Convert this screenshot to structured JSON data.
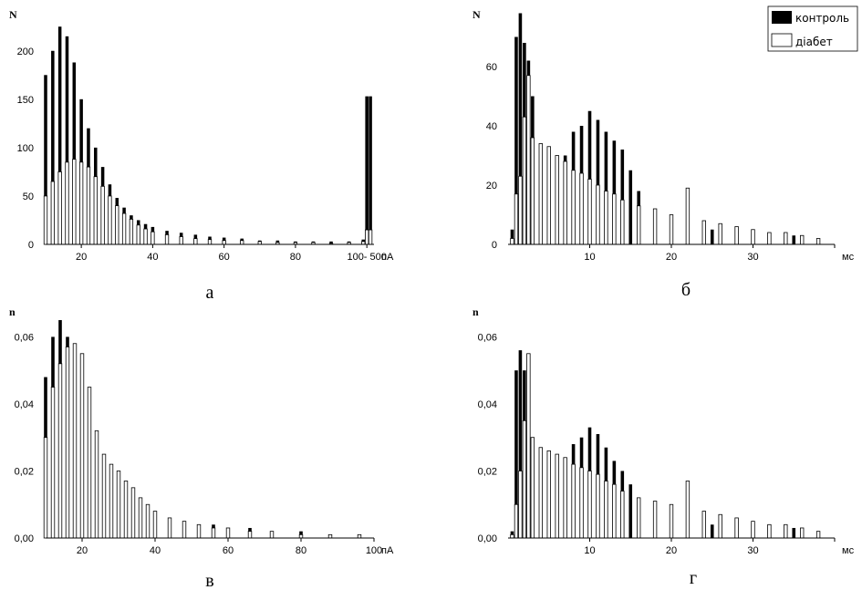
{
  "figure": {
    "legend": [
      {
        "label": "контроль",
        "color": "#000000",
        "fill": "solid"
      },
      {
        "label": "діабет",
        "color": "#000000",
        "fill": "hollow"
      }
    ]
  },
  "chart_data": [
    {
      "panel": "а",
      "type": "bar",
      "ylabel": "N",
      "xunit": "пА",
      "xlim": [
        10,
        102
      ],
      "ylim": [
        0,
        245
      ],
      "xticks": [
        {
          "v": 20,
          "label": "20"
        },
        {
          "v": 40,
          "label": "40"
        },
        {
          "v": 60,
          "label": "60"
        },
        {
          "v": 80,
          "label": "80"
        },
        {
          "v": 100,
          "label": "100- 500"
        }
      ],
      "yticks": [
        {
          "v": 0,
          "label": "0"
        },
        {
          "v": 50,
          "label": "50"
        },
        {
          "v": 100,
          "label": "100"
        },
        {
          "v": 150,
          "label": "150"
        },
        {
          "v": 200,
          "label": "200"
        }
      ],
      "bin_width": 0.9,
      "series": [
        {
          "name": "контроль",
          "style": "solid",
          "points": [
            [
              10,
              175
            ],
            [
              12,
              200
            ],
            [
              14,
              225
            ],
            [
              16,
              215
            ],
            [
              18,
              188
            ],
            [
              20,
              150
            ],
            [
              22,
              120
            ],
            [
              24,
              100
            ],
            [
              26,
              80
            ],
            [
              28,
              62
            ],
            [
              30,
              48
            ],
            [
              32,
              38
            ],
            [
              34,
              30
            ],
            [
              36,
              25
            ],
            [
              38,
              21
            ],
            [
              40,
              18
            ],
            [
              44,
              14
            ],
            [
              48,
              12
            ],
            [
              52,
              10
            ],
            [
              56,
              8
            ],
            [
              60,
              7
            ],
            [
              65,
              6
            ],
            [
              70,
              4
            ],
            [
              75,
              4
            ],
            [
              80,
              3
            ],
            [
              85,
              3
            ],
            [
              90,
              3
            ],
            [
              95,
              3
            ],
            [
              99,
              5
            ],
            [
              100,
              153
            ],
            [
              101,
              153
            ]
          ]
        },
        {
          "name": "діабет",
          "style": "hollow",
          "points": [
            [
              10,
              50
            ],
            [
              12,
              65
            ],
            [
              14,
              75
            ],
            [
              16,
              85
            ],
            [
              18,
              88
            ],
            [
              20,
              85
            ],
            [
              22,
              80
            ],
            [
              24,
              70
            ],
            [
              26,
              60
            ],
            [
              28,
              50
            ],
            [
              30,
              40
            ],
            [
              32,
              32
            ],
            [
              34,
              26
            ],
            [
              36,
              20
            ],
            [
              38,
              16
            ],
            [
              40,
              13
            ],
            [
              44,
              10
            ],
            [
              48,
              8
            ],
            [
              52,
              6
            ],
            [
              56,
              5
            ],
            [
              60,
              4
            ],
            [
              65,
              4
            ],
            [
              70,
              3
            ],
            [
              75,
              2
            ],
            [
              80,
              2
            ],
            [
              85,
              2
            ],
            [
              90,
              1
            ],
            [
              95,
              2
            ],
            [
              99,
              3
            ],
            [
              100,
              15
            ],
            [
              101,
              15
            ]
          ]
        }
      ]
    },
    {
      "panel": "б",
      "type": "bar",
      "ylabel": "N",
      "xunit": "мс",
      "xlim": [
        0,
        40
      ],
      "ylim": [
        0,
        80
      ],
      "xticks": [
        {
          "v": 10,
          "label": "10"
        },
        {
          "v": 20,
          "label": "20"
        },
        {
          "v": 30,
          "label": "30"
        },
        {
          "v": 40,
          "label": ""
        }
      ],
      "yticks": [
        {
          "v": 0,
          "label": "0"
        },
        {
          "v": 20,
          "label": "20"
        },
        {
          "v": 40,
          "label": "40"
        },
        {
          "v": 60,
          "label": "60"
        }
      ],
      "bin_width": 0.4,
      "series": [
        {
          "name": "контроль",
          "style": "solid",
          "points": [
            [
              0.5,
              5
            ],
            [
              1,
              70
            ],
            [
              1.5,
              78
            ],
            [
              2,
              68
            ],
            [
              2.5,
              62
            ],
            [
              3,
              50
            ],
            [
              4,
              30
            ],
            [
              6,
              25
            ],
            [
              7,
              30
            ],
            [
              8,
              38
            ],
            [
              9,
              40
            ],
            [
              10,
              45
            ],
            [
              11,
              42
            ],
            [
              12,
              38
            ],
            [
              13,
              35
            ],
            [
              14,
              32
            ],
            [
              15,
              25
            ],
            [
              16,
              18
            ],
            [
              18,
              10
            ],
            [
              20,
              6
            ],
            [
              25,
              5
            ],
            [
              30,
              3
            ],
            [
              35,
              3
            ],
            [
              38,
              1
            ]
          ]
        },
        {
          "name": "діабет",
          "style": "hollow",
          "points": [
            [
              0.5,
              2
            ],
            [
              1,
              17
            ],
            [
              1.5,
              23
            ],
            [
              2,
              43
            ],
            [
              2.5,
              57
            ],
            [
              3,
              36
            ],
            [
              4,
              34
            ],
            [
              5,
              33
            ],
            [
              6,
              30
            ],
            [
              7,
              28
            ],
            [
              8,
              25
            ],
            [
              9,
              24
            ],
            [
              10,
              22
            ],
            [
              11,
              20
            ],
            [
              12,
              18
            ],
            [
              13,
              17
            ],
            [
              14,
              15
            ],
            [
              16,
              13
            ],
            [
              18,
              12
            ],
            [
              20,
              10
            ],
            [
              22,
              19
            ],
            [
              24,
              8
            ],
            [
              26,
              7
            ],
            [
              28,
              6
            ],
            [
              30,
              5
            ],
            [
              32,
              4
            ],
            [
              34,
              4
            ],
            [
              36,
              3
            ],
            [
              38,
              2
            ]
          ]
        }
      ]
    },
    {
      "panel": "в",
      "type": "bar",
      "ylabel": "n",
      "xunit": "пА",
      "xlim": [
        10,
        100
      ],
      "ylim": [
        0,
        0.068
      ],
      "xticks": [
        {
          "v": 20,
          "label": "20"
        },
        {
          "v": 40,
          "label": "40"
        },
        {
          "v": 60,
          "label": "60"
        },
        {
          "v": 80,
          "label": "80"
        },
        {
          "v": 100,
          "label": "100"
        }
      ],
      "yticks": [
        {
          "v": 0,
          "label": "0,00"
        },
        {
          "v": 0.02,
          "label": "0,02"
        },
        {
          "v": 0.04,
          "label": "0,04"
        },
        {
          "v": 0.06,
          "label": "0,06"
        }
      ],
      "bin_width": 0.9,
      "series": [
        {
          "name": "контроль",
          "style": "solid",
          "points": [
            [
              10,
              0.048
            ],
            [
              12,
              0.06
            ],
            [
              14,
              0.065
            ],
            [
              16,
              0.06
            ],
            [
              18,
              0.05
            ],
            [
              20,
              0.04
            ],
            [
              22,
              0.03
            ],
            [
              24,
              0.024
            ],
            [
              26,
              0.02
            ],
            [
              28,
              0.017
            ],
            [
              30,
              0.015
            ],
            [
              32,
              0.013
            ],
            [
              34,
              0.011
            ],
            [
              36,
              0.009
            ],
            [
              38,
              0.008
            ],
            [
              40,
              0.007
            ],
            [
              44,
              0.006
            ],
            [
              48,
              0.005
            ],
            [
              52,
              0.004
            ],
            [
              56,
              0.004
            ],
            [
              60,
              0.003
            ],
            [
              66,
              0.003
            ],
            [
              72,
              0.002
            ],
            [
              80,
              0.002
            ],
            [
              88,
              0.001
            ],
            [
              96,
              0.001
            ]
          ]
        },
        {
          "name": "діабет",
          "style": "hollow",
          "points": [
            [
              10,
              0.03
            ],
            [
              12,
              0.045
            ],
            [
              14,
              0.052
            ],
            [
              16,
              0.057
            ],
            [
              18,
              0.058
            ],
            [
              20,
              0.055
            ],
            [
              22,
              0.045
            ],
            [
              24,
              0.032
            ],
            [
              26,
              0.025
            ],
            [
              28,
              0.022
            ],
            [
              30,
              0.02
            ],
            [
              32,
              0.017
            ],
            [
              34,
              0.015
            ],
            [
              36,
              0.012
            ],
            [
              38,
              0.01
            ],
            [
              40,
              0.008
            ],
            [
              44,
              0.006
            ],
            [
              48,
              0.005
            ],
            [
              52,
              0.004
            ],
            [
              56,
              0.003
            ],
            [
              60,
              0.003
            ],
            [
              66,
              0.002
            ],
            [
              72,
              0.002
            ],
            [
              80,
              0.001
            ],
            [
              88,
              0.001
            ],
            [
              96,
              0.001
            ]
          ]
        }
      ]
    },
    {
      "panel": "г",
      "type": "bar",
      "ylabel": "n",
      "xunit": "мс",
      "xlim": [
        0,
        40
      ],
      "ylim": [
        0,
        0.068
      ],
      "xticks": [
        {
          "v": 10,
          "label": "10"
        },
        {
          "v": 20,
          "label": "20"
        },
        {
          "v": 30,
          "label": "30"
        },
        {
          "v": 40,
          "label": ""
        }
      ],
      "yticks": [
        {
          "v": 0,
          "label": "0,00"
        },
        {
          "v": 0.02,
          "label": "0,02"
        },
        {
          "v": 0.04,
          "label": "0,04"
        },
        {
          "v": 0.06,
          "label": "0,06"
        }
      ],
      "bin_width": 0.4,
      "series": [
        {
          "name": "контроль",
          "style": "solid",
          "points": [
            [
              0.5,
              0.002
            ],
            [
              1,
              0.05
            ],
            [
              1.5,
              0.056
            ],
            [
              2,
              0.05
            ],
            [
              2.5,
              0.04
            ],
            [
              3,
              0.03
            ],
            [
              4,
              0.02
            ],
            [
              6,
              0.015
            ],
            [
              7,
              0.022
            ],
            [
              8,
              0.028
            ],
            [
              9,
              0.03
            ],
            [
              10,
              0.033
            ],
            [
              11,
              0.031
            ],
            [
              12,
              0.027
            ],
            [
              13,
              0.023
            ],
            [
              14,
              0.02
            ],
            [
              15,
              0.016
            ],
            [
              16,
              0.012
            ],
            [
              18,
              0.008
            ],
            [
              20,
              0.005
            ],
            [
              25,
              0.004
            ],
            [
              30,
              0.003
            ],
            [
              35,
              0.003
            ],
            [
              38,
              0.001
            ]
          ]
        },
        {
          "name": "діабет",
          "style": "hollow",
          "points": [
            [
              0.5,
              0.001
            ],
            [
              1,
              0.01
            ],
            [
              1.5,
              0.02
            ],
            [
              2,
              0.035
            ],
            [
              2.5,
              0.055
            ],
            [
              3,
              0.03
            ],
            [
              4,
              0.027
            ],
            [
              5,
              0.026
            ],
            [
              6,
              0.025
            ],
            [
              7,
              0.024
            ],
            [
              8,
              0.022
            ],
            [
              9,
              0.021
            ],
            [
              10,
              0.02
            ],
            [
              11,
              0.019
            ],
            [
              12,
              0.017
            ],
            [
              13,
              0.016
            ],
            [
              14,
              0.014
            ],
            [
              16,
              0.012
            ],
            [
              18,
              0.011
            ],
            [
              20,
              0.01
            ],
            [
              22,
              0.017
            ],
            [
              24,
              0.008
            ],
            [
              26,
              0.007
            ],
            [
              28,
              0.006
            ],
            [
              30,
              0.005
            ],
            [
              32,
              0.004
            ],
            [
              34,
              0.004
            ],
            [
              36,
              0.003
            ],
            [
              38,
              0.002
            ]
          ]
        }
      ]
    }
  ]
}
